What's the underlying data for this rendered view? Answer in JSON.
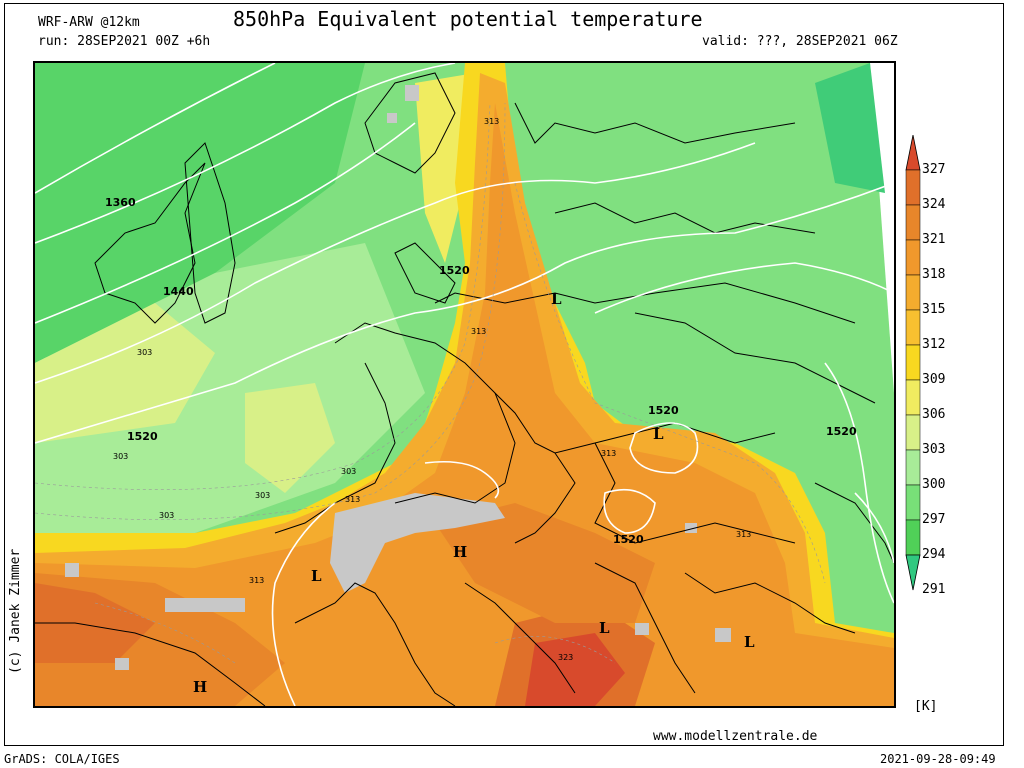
{
  "header": {
    "model": "WRF-ARW @12km",
    "title": "850hPa Equivalent potential temperature",
    "run": "run: 28SEP2021 00Z +6h",
    "valid": "valid: ???, 28SEP2021 06Z"
  },
  "footer": {
    "grads": "GrADS: COLA/IGES",
    "timestamp": "2021-09-28-09:49",
    "website": "www.modellzentrale.de",
    "author": "(c) Janek Zimmer"
  },
  "colorbar": {
    "unit": "[K]",
    "levels": [
      "327",
      "324",
      "321",
      "318",
      "315",
      "312",
      "309",
      "306",
      "303",
      "300",
      "297",
      "294",
      "291"
    ],
    "colors": [
      "#d84a2c",
      "#e0702a",
      "#e8862a",
      "#f0982c",
      "#f4ac2e",
      "#f8c030",
      "#f8d820",
      "#f0ec60",
      "#d8f088",
      "#a8ec98",
      "#78e078",
      "#50d058",
      "#30c880"
    ]
  },
  "map": {
    "labels": [
      {
        "text": "1360",
        "kind": "contour"
      },
      {
        "text": "1440",
        "kind": "contour"
      },
      {
        "text": "1520",
        "kind": "contour"
      },
      {
        "text": "1520",
        "kind": "contour"
      },
      {
        "text": "1520",
        "kind": "contour"
      },
      {
        "text": "1520",
        "kind": "contour"
      },
      {
        "text": "1520",
        "kind": "contour"
      },
      {
        "text": "313",
        "kind": "theta"
      },
      {
        "text": "313",
        "kind": "theta"
      },
      {
        "text": "303",
        "kind": "theta"
      },
      {
        "text": "303",
        "kind": "theta"
      },
      {
        "text": "303",
        "kind": "theta"
      },
      {
        "text": "303",
        "kind": "theta"
      },
      {
        "text": "313",
        "kind": "theta"
      },
      {
        "text": "313",
        "kind": "theta"
      },
      {
        "text": "313",
        "kind": "theta"
      },
      {
        "text": "313",
        "kind": "theta"
      },
      {
        "text": "323",
        "kind": "theta"
      },
      {
        "text": "303",
        "kind": "theta"
      },
      {
        "text": "L",
        "kind": "pressure"
      },
      {
        "text": "L",
        "kind": "pressure"
      },
      {
        "text": "L",
        "kind": "pressure"
      },
      {
        "text": "L",
        "kind": "pressure"
      },
      {
        "text": "L",
        "kind": "pressure"
      },
      {
        "text": "H",
        "kind": "pressure"
      },
      {
        "text": "H",
        "kind": "pressure"
      }
    ]
  }
}
